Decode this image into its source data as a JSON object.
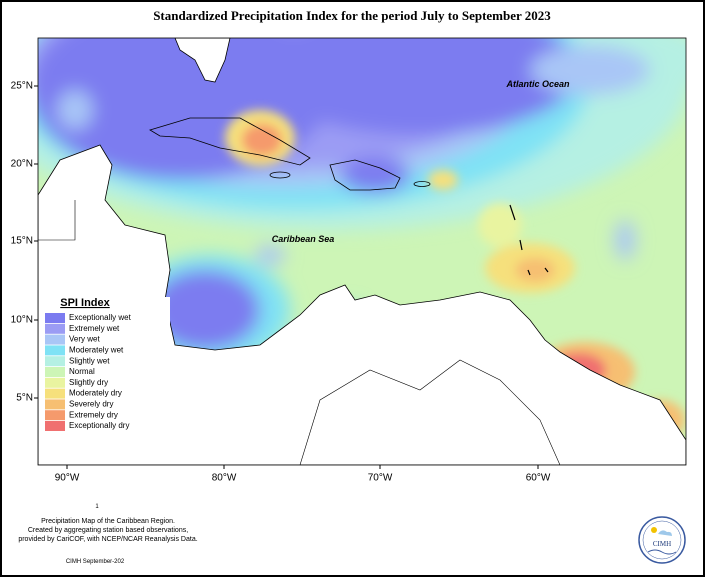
{
  "map": {
    "title": "Standardized Precipitation Index for the period July to September 2023",
    "ocean_labels": [
      "Atlantic Ocean",
      "Caribbean Sea"
    ],
    "x_ticks": [
      "90°W",
      "80°W",
      "70°W",
      "60°W"
    ],
    "y_ticks": [
      "25°N",
      "20°N",
      "15°N",
      "10°N",
      "5°N"
    ],
    "legend": {
      "title": "SPI Index",
      "items": [
        {
          "label": "Exceptionally wet",
          "color": "#7b7bf0"
        },
        {
          "label": "Extremely wet",
          "color": "#9b9cf4"
        },
        {
          "label": "Very wet",
          "color": "#a9c6f6"
        },
        {
          "label": "Moderately wet",
          "color": "#7fe2f5"
        },
        {
          "label": "Slightly wet",
          "color": "#b5f0e3"
        },
        {
          "label": "Normal",
          "color": "#cdf5b6"
        },
        {
          "label": "Slightly dry",
          "color": "#e9f4a0"
        },
        {
          "label": "Moderately dry",
          "color": "#f6e07c"
        },
        {
          "label": "Severely dry",
          "color": "#f6bf72"
        },
        {
          "label": "Extremely dry",
          "color": "#f59a6c"
        },
        {
          "label": "Exceptionally dry",
          "color": "#f07070"
        }
      ]
    },
    "footer": {
      "page_mark": "1",
      "lines": [
        "Precipitation Map of the Caribbean Region.",
        "Created by aggregating station based observations,",
        "provided by CariCOF, with NCEP/NCAR Reanalysis Data."
      ],
      "credit": "CIMH September-202"
    },
    "logo_text": "CIMH"
  }
}
